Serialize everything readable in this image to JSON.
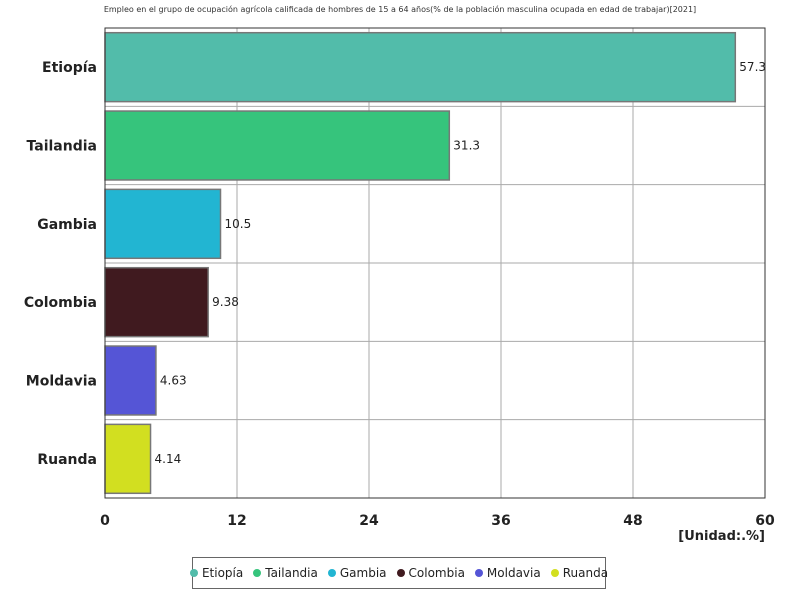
{
  "chart_data": {
    "type": "bar",
    "orientation": "horizontal",
    "title": "Empleo en el grupo de ocupación agrícola calificada de hombres de 15 a 64 años(% de la población masculina ocupada en edad de trabajar)[2021]",
    "categories": [
      "Etiopía",
      "Tailandia",
      "Gambia",
      "Colombia",
      "Moldavia",
      "Ruanda"
    ],
    "values": [
      57.3,
      31.3,
      10.5,
      9.38,
      4.63,
      4.14
    ],
    "value_labels": [
      "57.3",
      "31.3",
      "10.5",
      "9.38",
      "4.63",
      "4.14"
    ],
    "colors": [
      "#52bcaa",
      "#36c47c",
      "#22b5d2",
      "#401a1f",
      "#5555d6",
      "#d2df20"
    ],
    "xlim": [
      0,
      60
    ],
    "xticks": [
      "0",
      "12",
      "24",
      "36",
      "48",
      "60"
    ],
    "xtick_values": [
      0,
      12,
      24,
      36,
      48,
      60
    ],
    "unit_label": "[Unidad:.%]",
    "grid": true,
    "legend_placement": "bottom"
  }
}
